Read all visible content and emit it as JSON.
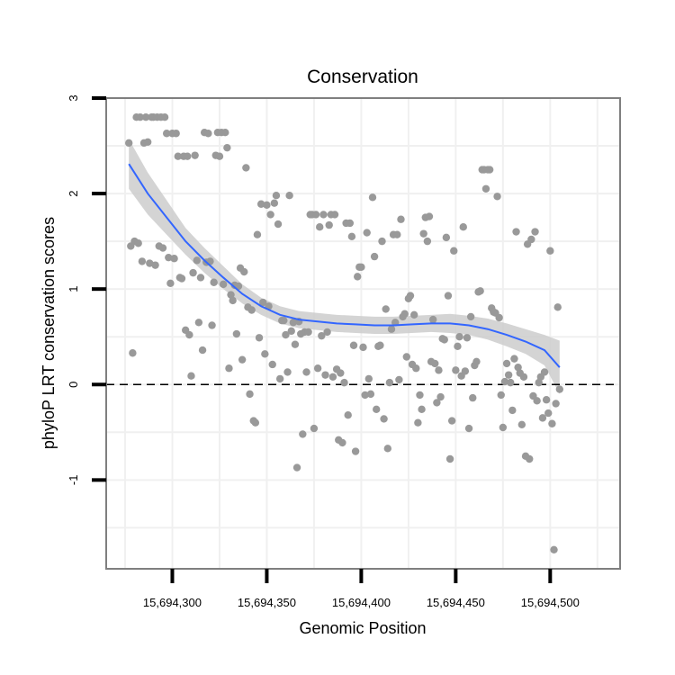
{
  "chart_data": {
    "type": "scatter",
    "title": "Conservation",
    "xlabel": "Genomic Position",
    "ylabel": "phyloP LRT conservation scores",
    "xlim": [
      15694265,
      15694537
    ],
    "ylim": [
      -1.93,
      3.0
    ],
    "x_ticks": [
      15694300,
      15694350,
      15694400,
      15694450,
      15694500
    ],
    "x_tick_labels": [
      "15,694,300",
      "15,694,350",
      "15,694,400",
      "15,694,450",
      "15,694,500"
    ],
    "y_ticks": [
      -1,
      0,
      1,
      2,
      3
    ],
    "y_tick_labels": [
      "-1",
      "0",
      "1",
      "2",
      "3"
    ],
    "reference_line": {
      "y": 0,
      "style": "dashed"
    },
    "grid": true,
    "colors": {
      "points": "#999999",
      "smooth_line": "#3366ff",
      "confidence_band": "#cccccc",
      "reference_line": "#000000",
      "frame": "#7f7f7f"
    },
    "points": [
      [
        15694277,
        2.53
      ],
      [
        15694278,
        1.45
      ],
      [
        15694279,
        0.33
      ],
      [
        15694280,
        1.5
      ],
      [
        15694281,
        2.8
      ],
      [
        15694282,
        1.48
      ],
      [
        15694283,
        2.8
      ],
      [
        15694284,
        1.29
      ],
      [
        15694285,
        2.53
      ],
      [
        15694286,
        2.8
      ],
      [
        15694287,
        2.54
      ],
      [
        15694288,
        1.27
      ],
      [
        15694289,
        2.8
      ],
      [
        15694290,
        2.8
      ],
      [
        15694291,
        1.25
      ],
      [
        15694292,
        2.8
      ],
      [
        15694293,
        1.45
      ],
      [
        15694294,
        2.8
      ],
      [
        15694295,
        1.43
      ],
      [
        15694296,
        2.8
      ],
      [
        15694297,
        2.63
      ],
      [
        15694298,
        1.33
      ],
      [
        15694299,
        1.06
      ],
      [
        15694300,
        2.63
      ],
      [
        15694301,
        1.32
      ],
      [
        15694302,
        2.63
      ],
      [
        15694303,
        2.39
      ],
      [
        15694304,
        1.12
      ],
      [
        15694305,
        1.11
      ],
      [
        15694306,
        2.39
      ],
      [
        15694307,
        0.57
      ],
      [
        15694308,
        2.39
      ],
      [
        15694309,
        0.52
      ],
      [
        15694310,
        0.09
      ],
      [
        15694311,
        1.17
      ],
      [
        15694312,
        2.4
      ],
      [
        15694313,
        1.3
      ],
      [
        15694314,
        0.65
      ],
      [
        15694315,
        1.12
      ],
      [
        15694316,
        0.36
      ],
      [
        15694317,
        2.64
      ],
      [
        15694318,
        1.28
      ],
      [
        15694319,
        2.63
      ],
      [
        15694320,
        1.29
      ],
      [
        15694321,
        0.62
      ],
      [
        15694322,
        1.07
      ],
      [
        15694323,
        2.4
      ],
      [
        15694324,
        2.64
      ],
      [
        15694325,
        2.39
      ],
      [
        15694326,
        2.64
      ],
      [
        15694327,
        1.05
      ],
      [
        15694328,
        2.64
      ],
      [
        15694329,
        2.48
      ],
      [
        15694330,
        0.17
      ],
      [
        15694331,
        0.94
      ],
      [
        15694332,
        0.88
      ],
      [
        15694333,
        1.04
      ],
      [
        15694334,
        0.53
      ],
      [
        15694335,
        1.03
      ],
      [
        15694336,
        1.22
      ],
      [
        15694337,
        0.26
      ],
      [
        15694338,
        1.18
      ],
      [
        15694339,
        2.27
      ],
      [
        15694340,
        0.81
      ],
      [
        15694341,
        -0.1
      ],
      [
        15694342,
        0.78
      ],
      [
        15694343,
        -0.38
      ],
      [
        15694344,
        -0.4
      ],
      [
        15694345,
        1.57
      ],
      [
        15694346,
        0.49
      ],
      [
        15694347,
        1.89
      ],
      [
        15694348,
        0.86
      ],
      [
        15694349,
        0.32
      ],
      [
        15694350,
        1.88
      ],
      [
        15694351,
        0.82
      ],
      [
        15694352,
        1.78
      ],
      [
        15694353,
        0.21
      ],
      [
        15694354,
        1.9
      ],
      [
        15694355,
        1.98
      ],
      [
        15694356,
        1.68
      ],
      [
        15694357,
        0.06
      ],
      [
        15694358,
        0.67
      ],
      [
        15694359,
        0.67
      ],
      [
        15694360,
        0.52
      ],
      [
        15694361,
        0.13
      ],
      [
        15694362,
        1.98
      ],
      [
        15694363,
        0.56
      ],
      [
        15694364,
        0.65
      ],
      [
        15694365,
        0.42
      ],
      [
        15694366,
        -0.87
      ],
      [
        15694367,
        0.66
      ],
      [
        15694368,
        0.53
      ],
      [
        15694369,
        -0.52
      ],
      [
        15694370,
        0.55
      ],
      [
        15694371,
        0.13
      ],
      [
        15694372,
        0.55
      ],
      [
        15694373,
        1.78
      ],
      [
        15694374,
        1.78
      ],
      [
        15694375,
        -0.46
      ],
      [
        15694376,
        1.78
      ],
      [
        15694377,
        0.17
      ],
      [
        15694378,
        1.65
      ],
      [
        15694379,
        0.51
      ],
      [
        15694380,
        1.78
      ],
      [
        15694381,
        0.1
      ],
      [
        15694382,
        0.55
      ],
      [
        15694383,
        1.67
      ],
      [
        15694384,
        1.78
      ],
      [
        15694385,
        0.08
      ],
      [
        15694386,
        1.78
      ],
      [
        15694387,
        0.16
      ],
      [
        15694388,
        -0.58
      ],
      [
        15694389,
        0.12
      ],
      [
        15694390,
        -0.61
      ],
      [
        15694391,
        0.02
      ],
      [
        15694392,
        1.69
      ],
      [
        15694393,
        -0.32
      ],
      [
        15694394,
        1.69
      ],
      [
        15694395,
        1.55
      ],
      [
        15694396,
        0.41
      ],
      [
        15694397,
        -0.7
      ],
      [
        15694398,
        1.13
      ],
      [
        15694399,
        1.23
      ],
      [
        15694400,
        1.23
      ],
      [
        15694401,
        0.39
      ],
      [
        15694402,
        -0.11
      ],
      [
        15694403,
        1.59
      ],
      [
        15694404,
        0.06
      ],
      [
        15694405,
        -0.1
      ],
      [
        15694406,
        1.96
      ],
      [
        15694407,
        1.34
      ],
      [
        15694408,
        -0.26
      ],
      [
        15694409,
        0.4
      ],
      [
        15694410,
        0.41
      ],
      [
        15694411,
        1.5
      ],
      [
        15694412,
        -0.36
      ],
      [
        15694413,
        0.79
      ],
      [
        15694414,
        -0.67
      ],
      [
        15694415,
        0.02
      ],
      [
        15694416,
        0.58
      ],
      [
        15694417,
        1.57
      ],
      [
        15694418,
        0.65
      ],
      [
        15694419,
        1.57
      ],
      [
        15694420,
        0.05
      ],
      [
        15694421,
        1.73
      ],
      [
        15694422,
        0.71
      ],
      [
        15694423,
        0.74
      ],
      [
        15694424,
        0.29
      ],
      [
        15694425,
        0.9
      ],
      [
        15694426,
        0.93
      ],
      [
        15694427,
        0.21
      ],
      [
        15694428,
        0.73
      ],
      [
        15694429,
        0.17
      ],
      [
        15694430,
        -0.4
      ],
      [
        15694431,
        -0.11
      ],
      [
        15694432,
        -0.26
      ],
      [
        15694433,
        1.58
      ],
      [
        15694434,
        1.75
      ],
      [
        15694435,
        1.5
      ],
      [
        15694436,
        1.76
      ],
      [
        15694437,
        0.24
      ],
      [
        15694438,
        0.68
      ],
      [
        15694439,
        0.22
      ],
      [
        15694440,
        -0.19
      ],
      [
        15694441,
        0.15
      ],
      [
        15694442,
        -0.13
      ],
      [
        15694443,
        0.48
      ],
      [
        15694444,
        0.47
      ],
      [
        15694445,
        1.54
      ],
      [
        15694446,
        0.93
      ],
      [
        15694447,
        -0.78
      ],
      [
        15694448,
        -0.38
      ],
      [
        15694449,
        1.4
      ],
      [
        15694450,
        0.15
      ],
      [
        15694451,
        0.4
      ],
      [
        15694452,
        0.5
      ],
      [
        15694453,
        0.09
      ],
      [
        15694454,
        1.65
      ],
      [
        15694455,
        0.14
      ],
      [
        15694456,
        0.49
      ],
      [
        15694457,
        -0.46
      ],
      [
        15694458,
        0.71
      ],
      [
        15694459,
        -0.14
      ],
      [
        15694460,
        0.2
      ],
      [
        15694461,
        0.24
      ],
      [
        15694462,
        0.97
      ],
      [
        15694463,
        0.98
      ],
      [
        15694464,
        2.25
      ],
      [
        15694465,
        2.25
      ],
      [
        15694466,
        2.05
      ],
      [
        15694467,
        2.25
      ],
      [
        15694468,
        2.25
      ],
      [
        15694469,
        0.8
      ],
      [
        15694470,
        0.76
      ],
      [
        15694471,
        0.75
      ],
      [
        15694472,
        1.97
      ],
      [
        15694473,
        0.7
      ],
      [
        15694474,
        -0.11
      ],
      [
        15694475,
        -0.45
      ],
      [
        15694476,
        0.03
      ],
      [
        15694477,
        0.22
      ],
      [
        15694478,
        0.1
      ],
      [
        15694479,
        0.02
      ],
      [
        15694480,
        -0.27
      ],
      [
        15694481,
        0.27
      ],
      [
        15694482,
        1.6
      ],
      [
        15694483,
        0.18
      ],
      [
        15694484,
        0.12
      ],
      [
        15694485,
        -0.42
      ],
      [
        15694486,
        0.08
      ],
      [
        15694487,
        -0.75
      ],
      [
        15694488,
        1.47
      ],
      [
        15694489,
        -0.78
      ],
      [
        15694490,
        1.52
      ],
      [
        15694491,
        -0.12
      ],
      [
        15694492,
        1.6
      ],
      [
        15694493,
        -0.17
      ],
      [
        15694494,
        0.02
      ],
      [
        15694495,
        0.08
      ],
      [
        15694496,
        -0.35
      ],
      [
        15694497,
        0.13
      ],
      [
        15694498,
        -0.16
      ],
      [
        15694499,
        -0.3
      ],
      [
        15694500,
        1.4
      ],
      [
        15694501,
        -0.41
      ],
      [
        15694502,
        -1.73
      ],
      [
        15694503,
        -0.2
      ],
      [
        15694504,
        0.81
      ],
      [
        15694505,
        -0.05
      ]
    ],
    "smooth_curve": [
      [
        15694277,
        2.31
      ],
      [
        15694287,
        2.0
      ],
      [
        15694297,
        1.75
      ],
      [
        15694307,
        1.5
      ],
      [
        15694317,
        1.3
      ],
      [
        15694327,
        1.12
      ],
      [
        15694337,
        0.95
      ],
      [
        15694347,
        0.82
      ],
      [
        15694357,
        0.73
      ],
      [
        15694367,
        0.68
      ],
      [
        15694377,
        0.66
      ],
      [
        15694387,
        0.64
      ],
      [
        15694397,
        0.63
      ],
      [
        15694407,
        0.62
      ],
      [
        15694417,
        0.62
      ],
      [
        15694427,
        0.63
      ],
      [
        15694437,
        0.64
      ],
      [
        15694447,
        0.64
      ],
      [
        15694457,
        0.62
      ],
      [
        15694467,
        0.58
      ],
      [
        15694477,
        0.52
      ],
      [
        15694487,
        0.45
      ],
      [
        15694497,
        0.36
      ],
      [
        15694505,
        0.18
      ]
    ],
    "band_upper": [
      [
        15694277,
        2.57
      ],
      [
        15694287,
        2.22
      ],
      [
        15694297,
        1.93
      ],
      [
        15694307,
        1.64
      ],
      [
        15694317,
        1.43
      ],
      [
        15694327,
        1.24
      ],
      [
        15694337,
        1.05
      ],
      [
        15694347,
        0.91
      ],
      [
        15694357,
        0.82
      ],
      [
        15694367,
        0.77
      ],
      [
        15694377,
        0.75
      ],
      [
        15694387,
        0.73
      ],
      [
        15694397,
        0.72
      ],
      [
        15694407,
        0.71
      ],
      [
        15694417,
        0.71
      ],
      [
        15694427,
        0.72
      ],
      [
        15694437,
        0.73
      ],
      [
        15694447,
        0.74
      ],
      [
        15694457,
        0.72
      ],
      [
        15694467,
        0.69
      ],
      [
        15694477,
        0.64
      ],
      [
        15694487,
        0.58
      ],
      [
        15694497,
        0.52
      ],
      [
        15694505,
        0.46
      ]
    ],
    "band_lower": [
      [
        15694277,
        2.05
      ],
      [
        15694287,
        1.78
      ],
      [
        15694297,
        1.57
      ],
      [
        15694307,
        1.36
      ],
      [
        15694317,
        1.17
      ],
      [
        15694327,
        1.0
      ],
      [
        15694337,
        0.85
      ],
      [
        15694347,
        0.73
      ],
      [
        15694357,
        0.64
      ],
      [
        15694367,
        0.59
      ],
      [
        15694377,
        0.57
      ],
      [
        15694387,
        0.55
      ],
      [
        15694397,
        0.54
      ],
      [
        15694407,
        0.53
      ],
      [
        15694417,
        0.53
      ],
      [
        15694427,
        0.54
      ],
      [
        15694437,
        0.55
      ],
      [
        15694447,
        0.54
      ],
      [
        15694457,
        0.52
      ],
      [
        15694467,
        0.47
      ],
      [
        15694477,
        0.4
      ],
      [
        15694487,
        0.32
      ],
      [
        15694497,
        0.2
      ],
      [
        15694505,
        -0.1
      ]
    ]
  }
}
